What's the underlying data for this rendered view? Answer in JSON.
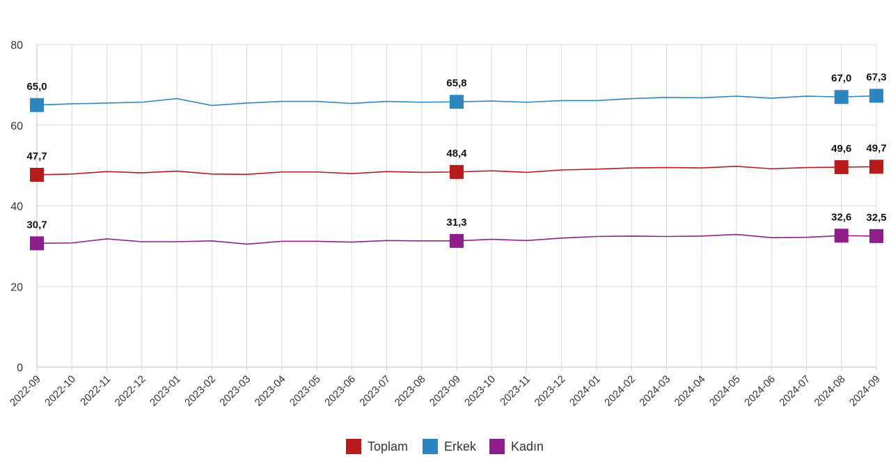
{
  "chart_data": {
    "type": "line",
    "title": "",
    "xlabel": "",
    "ylabel": "",
    "ylim": [
      0,
      80
    ],
    "yticks": [
      0,
      20,
      40,
      60,
      80
    ],
    "grid": true,
    "legend_position": "bottom-center",
    "x": [
      "2022-09",
      "2022-10",
      "2022-11",
      "2022-12",
      "2023-01",
      "2023-02",
      "2023-03",
      "2023-04",
      "2023-05",
      "2023-06",
      "2023-07",
      "2023-08",
      "2023-09",
      "2023-10",
      "2023-11",
      "2023-12",
      "2024-01",
      "2024-02",
      "2024-03",
      "2024-04",
      "2024-05",
      "2024-06",
      "2024-07",
      "2024-08",
      "2024-09"
    ],
    "series": [
      {
        "name": "Toplam",
        "color": "#b71c1c",
        "values": [
          47.7,
          47.9,
          48.5,
          48.2,
          48.6,
          47.9,
          47.8,
          48.4,
          48.4,
          48.0,
          48.5,
          48.3,
          48.4,
          48.7,
          48.3,
          48.9,
          49.1,
          49.4,
          49.5,
          49.4,
          49.8,
          49.2,
          49.5,
          49.6,
          49.7
        ],
        "labels": [
          {
            "index": 0,
            "text": "47,7"
          },
          {
            "index": 12,
            "text": "48,4"
          },
          {
            "index": 23,
            "text": "49,6"
          },
          {
            "index": 24,
            "text": "49,7"
          }
        ]
      },
      {
        "name": "Erkek",
        "color": "#2e86c1",
        "values": [
          65.0,
          65.3,
          65.5,
          65.7,
          66.6,
          64.9,
          65.5,
          65.9,
          65.9,
          65.4,
          65.9,
          65.7,
          65.8,
          66.0,
          65.7,
          66.1,
          66.1,
          66.6,
          66.9,
          66.8,
          67.2,
          66.7,
          67.2,
          67.0,
          67.3
        ],
        "labels": [
          {
            "index": 0,
            "text": "65,0"
          },
          {
            "index": 12,
            "text": "65,8"
          },
          {
            "index": 23,
            "text": "67,0"
          },
          {
            "index": 24,
            "text": "67,3"
          }
        ]
      },
      {
        "name": "Kadın",
        "color": "#8e1f8a",
        "values": [
          30.7,
          30.8,
          31.8,
          31.1,
          31.1,
          31.3,
          30.5,
          31.2,
          31.2,
          31.0,
          31.4,
          31.3,
          31.3,
          31.7,
          31.4,
          32.0,
          32.4,
          32.5,
          32.4,
          32.5,
          32.9,
          32.1,
          32.2,
          32.6,
          32.5
        ],
        "labels": [
          {
            "index": 0,
            "text": "30,7"
          },
          {
            "index": 12,
            "text": "31,3"
          },
          {
            "index": 23,
            "text": "32,6"
          },
          {
            "index": 24,
            "text": "32,5"
          }
        ]
      }
    ]
  }
}
